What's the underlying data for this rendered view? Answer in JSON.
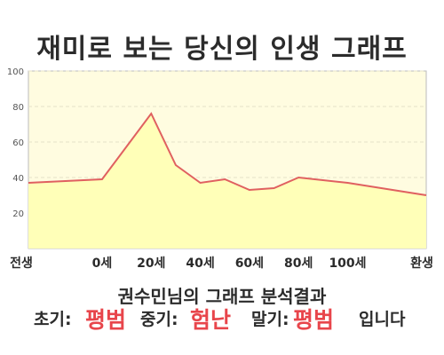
{
  "title": "재미로 보는 당신의 인생 그래프",
  "analysis_title": "권수민님의 그래프 분석결과",
  "result": {
    "early_label": "초기:",
    "early_value": "평범",
    "middle_label": "중기:",
    "middle_value": "험난",
    "late_label": "말기:",
    "late_value": "평범",
    "ending": "입니다"
  },
  "colors": {
    "plot_bg": "#fffce0",
    "fill": "#ffffb8",
    "line": "#e06060",
    "highlight": "#e8454b"
  },
  "chart_data": {
    "type": "area",
    "title": "재미로 보는 당신의 인생 그래프",
    "x_tick_labels": [
      "전생",
      "0세",
      "20세",
      "40세",
      "60세",
      "80세",
      "100세",
      "환생"
    ],
    "ylim": [
      0,
      100
    ],
    "y_ticks": [
      20,
      40,
      60,
      80,
      100
    ],
    "grid": true,
    "series": [
      {
        "points": [
          {
            "x": "전생",
            "y": 37
          },
          {
            "x": "0세",
            "y": 39
          },
          {
            "x": "20세",
            "y": 76
          },
          {
            "x": "30세",
            "y": 47
          },
          {
            "x": "40세",
            "y": 37
          },
          {
            "x": "50세",
            "y": 39
          },
          {
            "x": "60세",
            "y": 33
          },
          {
            "x": "70세",
            "y": 34
          },
          {
            "x": "80세",
            "y": 40
          },
          {
            "x": "100세",
            "y": 37
          },
          {
            "x": "환생",
            "y": 30
          }
        ]
      }
    ]
  }
}
